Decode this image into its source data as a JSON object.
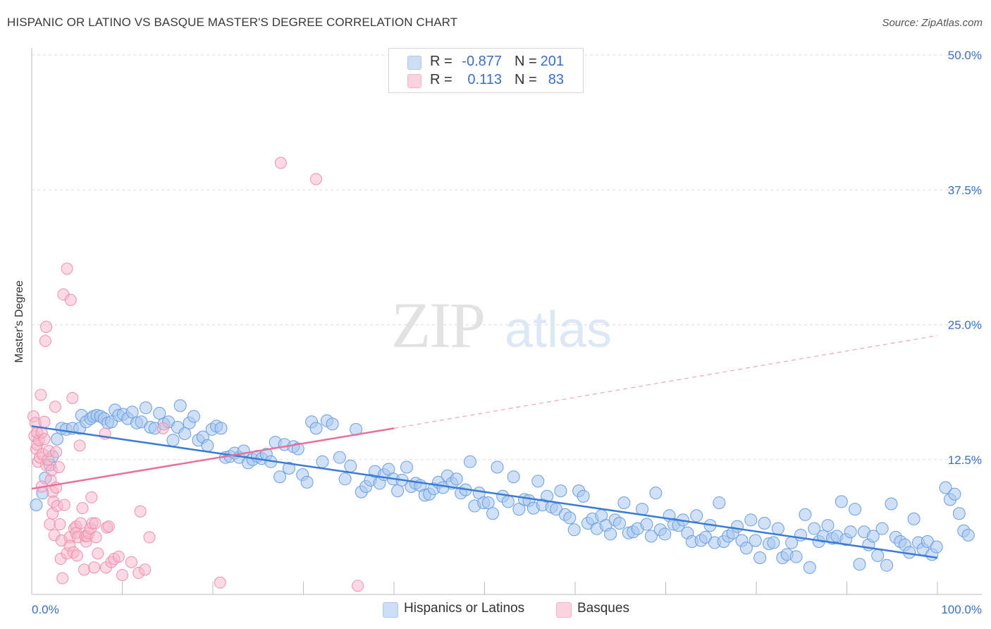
{
  "title": "HISPANIC OR LATINO VS BASQUE MASTER'S DEGREE CORRELATION CHART",
  "source": "Source: ZipAtlas.com",
  "watermark": {
    "zip": "ZIP",
    "atlas": "atlas"
  },
  "legend_top": [
    {
      "swatch_color": "#aac8f0",
      "r_label": "R =",
      "r_value": "-0.877",
      "n_label": "N =",
      "n_value": "201"
    },
    {
      "swatch_color": "#f7b6c8",
      "r_label": "R =",
      "r_value": "0.113",
      "n_label": "N =",
      "n_value": "83"
    }
  ],
  "legend_bottom": [
    {
      "label": "Hispanics or Latinos",
      "swatch_color": "#aac8f0"
    },
    {
      "label": "Basques",
      "swatch_color": "#f7b6c8"
    }
  ],
  "colors": {
    "blue": "#3a7bd5",
    "blue_fill": "#aac8f0",
    "pink": "#e8709a",
    "pink_fill": "#f7b6c8",
    "tick_text": "#3a6fc4"
  },
  "chart_data": {
    "type": "scatter",
    "title": "HISPANIC OR LATINO VS BASQUE MASTER'S DEGREE CORRELATION CHART",
    "xlabel": "",
    "ylabel": "Master's Degree",
    "xlim": [
      0,
      100
    ],
    "ylim": [
      0,
      50
    ],
    "x_tick_labels": [
      "0.0%",
      "100.0%"
    ],
    "y_ticks": [
      12.5,
      25.0,
      37.5,
      50.0
    ],
    "y_tick_labels": [
      "12.5%",
      "25.0%",
      "37.5%",
      "50.0%"
    ],
    "grid": "horizontal dashed",
    "series": [
      {
        "name": "Hispanics or Latinos",
        "color": "#3a7bd5",
        "R": -0.877,
        "N": 201,
        "trend": {
          "x": [
            0,
            100
          ],
          "y": [
            15.6,
            3.4
          ]
        },
        "points": [
          [
            0.5,
            8.3
          ],
          [
            1.2,
            9.4
          ],
          [
            1.5,
            10.8
          ],
          [
            2.0,
            12.0
          ],
          [
            2.3,
            12.8
          ],
          [
            2.8,
            14.4
          ],
          [
            3.3,
            15.4
          ],
          [
            3.8,
            15.3
          ],
          [
            4.5,
            15.4
          ],
          [
            5.3,
            15.4
          ],
          [
            5.5,
            16.6
          ],
          [
            6.0,
            16.0
          ],
          [
            6.5,
            16.3
          ],
          [
            6.8,
            16.5
          ],
          [
            7.2,
            16.6
          ],
          [
            7.6,
            16.5
          ],
          [
            8.0,
            16.3
          ],
          [
            8.4,
            15.9
          ],
          [
            8.8,
            16.0
          ],
          [
            9.2,
            17.1
          ],
          [
            9.6,
            16.6
          ],
          [
            10.1,
            16.7
          ],
          [
            10.6,
            16.3
          ],
          [
            11.1,
            16.9
          ],
          [
            11.6,
            15.9
          ],
          [
            12.1,
            16.0
          ],
          [
            12.6,
            17.3
          ],
          [
            13.1,
            15.5
          ],
          [
            13.6,
            15.4
          ],
          [
            14.1,
            16.8
          ],
          [
            14.6,
            15.8
          ],
          [
            15.1,
            16.0
          ],
          [
            15.6,
            14.3
          ],
          [
            16.1,
            15.5
          ],
          [
            16.4,
            17.5
          ],
          [
            16.9,
            14.9
          ],
          [
            17.4,
            15.9
          ],
          [
            17.9,
            16.5
          ],
          [
            18.4,
            14.3
          ],
          [
            18.9,
            14.6
          ],
          [
            19.4,
            13.8
          ],
          [
            19.9,
            15.3
          ],
          [
            20.4,
            15.6
          ],
          [
            20.9,
            15.4
          ],
          [
            21.4,
            12.7
          ],
          [
            21.9,
            12.8
          ],
          [
            22.4,
            13.1
          ],
          [
            22.9,
            12.7
          ],
          [
            23.4,
            13.3
          ],
          [
            23.9,
            12.2
          ],
          [
            24.4,
            12.5
          ],
          [
            24.9,
            12.8
          ],
          [
            25.4,
            12.6
          ],
          [
            25.9,
            13.0
          ],
          [
            26.4,
            12.3
          ],
          [
            26.9,
            14.1
          ],
          [
            27.4,
            10.9
          ],
          [
            27.9,
            13.9
          ],
          [
            28.4,
            11.7
          ],
          [
            28.9,
            13.7
          ],
          [
            29.4,
            13.5
          ],
          [
            29.9,
            11.1
          ],
          [
            30.4,
            10.4
          ],
          [
            30.9,
            16.0
          ],
          [
            31.4,
            15.4
          ],
          [
            32.1,
            12.3
          ],
          [
            32.6,
            16.1
          ],
          [
            33.2,
            15.8
          ],
          [
            34.0,
            12.7
          ],
          [
            34.6,
            10.7
          ],
          [
            35.2,
            11.9
          ],
          [
            35.8,
            15.3
          ],
          [
            36.4,
            9.5
          ],
          [
            36.9,
            10.0
          ],
          [
            37.4,
            10.6
          ],
          [
            37.9,
            11.4
          ],
          [
            38.4,
            10.3
          ],
          [
            38.9,
            11.1
          ],
          [
            39.4,
            11.6
          ],
          [
            39.9,
            10.7
          ],
          [
            40.4,
            9.6
          ],
          [
            40.9,
            10.6
          ],
          [
            41.4,
            11.8
          ],
          [
            41.9,
            10.0
          ],
          [
            42.4,
            10.3
          ],
          [
            42.9,
            10.1
          ],
          [
            43.4,
            9.2
          ],
          [
            43.9,
            9.3
          ],
          [
            44.4,
            9.8
          ],
          [
            44.9,
            10.4
          ],
          [
            45.4,
            9.9
          ],
          [
            45.9,
            11.0
          ],
          [
            46.4,
            10.3
          ],
          [
            46.9,
            10.7
          ],
          [
            47.4,
            9.4
          ],
          [
            47.9,
            9.7
          ],
          [
            48.4,
            12.3
          ],
          [
            48.9,
            8.2
          ],
          [
            49.4,
            9.4
          ],
          [
            49.9,
            8.5
          ],
          [
            50.4,
            8.5
          ],
          [
            50.9,
            7.5
          ],
          [
            51.4,
            11.8
          ],
          [
            52.0,
            9.1
          ],
          [
            52.6,
            8.6
          ],
          [
            53.2,
            10.9
          ],
          [
            53.8,
            7.9
          ],
          [
            54.4,
            8.8
          ],
          [
            54.9,
            8.7
          ],
          [
            55.4,
            8.0
          ],
          [
            55.9,
            10.5
          ],
          [
            56.4,
            8.3
          ],
          [
            56.9,
            9.1
          ],
          [
            57.4,
            8.1
          ],
          [
            57.9,
            7.9
          ],
          [
            58.4,
            9.6
          ],
          [
            58.9,
            7.4
          ],
          [
            59.4,
            7.1
          ],
          [
            59.9,
            6.0
          ],
          [
            60.4,
            9.6
          ],
          [
            60.9,
            9.1
          ],
          [
            61.4,
            6.6
          ],
          [
            61.9,
            7.0
          ],
          [
            62.4,
            6.1
          ],
          [
            62.9,
            7.3
          ],
          [
            63.4,
            6.4
          ],
          [
            63.9,
            5.6
          ],
          [
            64.4,
            6.9
          ],
          [
            64.9,
            6.6
          ],
          [
            65.4,
            8.5
          ],
          [
            65.9,
            5.7
          ],
          [
            66.4,
            5.8
          ],
          [
            66.9,
            6.1
          ],
          [
            67.4,
            7.9
          ],
          [
            67.9,
            6.5
          ],
          [
            68.4,
            5.4
          ],
          [
            68.9,
            9.4
          ],
          [
            69.4,
            6.0
          ],
          [
            69.9,
            5.6
          ],
          [
            70.4,
            7.3
          ],
          [
            70.9,
            6.5
          ],
          [
            71.4,
            6.4
          ],
          [
            71.9,
            6.9
          ],
          [
            72.4,
            5.7
          ],
          [
            72.9,
            4.9
          ],
          [
            73.4,
            7.3
          ],
          [
            73.9,
            5.0
          ],
          [
            74.4,
            5.3
          ],
          [
            74.9,
            6.4
          ],
          [
            75.4,
            4.8
          ],
          [
            75.9,
            8.5
          ],
          [
            76.4,
            4.9
          ],
          [
            76.9,
            5.4
          ],
          [
            77.4,
            5.7
          ],
          [
            77.9,
            6.3
          ],
          [
            78.4,
            5.0
          ],
          [
            78.9,
            4.3
          ],
          [
            79.4,
            6.9
          ],
          [
            79.9,
            5.0
          ],
          [
            80.4,
            3.4
          ],
          [
            80.9,
            6.6
          ],
          [
            81.4,
            4.7
          ],
          [
            81.9,
            4.8
          ],
          [
            82.4,
            6.1
          ],
          [
            82.9,
            3.4
          ],
          [
            83.4,
            3.7
          ],
          [
            83.9,
            4.8
          ],
          [
            84.4,
            3.5
          ],
          [
            84.9,
            5.5
          ],
          [
            85.4,
            7.4
          ],
          [
            85.9,
            2.5
          ],
          [
            86.4,
            6.1
          ],
          [
            86.9,
            4.9
          ],
          [
            87.4,
            5.4
          ],
          [
            87.9,
            6.4
          ],
          [
            88.4,
            5.2
          ],
          [
            88.9,
            5.4
          ],
          [
            89.4,
            8.6
          ],
          [
            89.9,
            5.1
          ],
          [
            90.4,
            5.8
          ],
          [
            90.9,
            7.9
          ],
          [
            91.4,
            2.8
          ],
          [
            91.9,
            5.8
          ],
          [
            92.4,
            4.6
          ],
          [
            92.9,
            5.4
          ],
          [
            93.4,
            3.6
          ],
          [
            93.9,
            6.1
          ],
          [
            94.4,
            2.7
          ],
          [
            94.9,
            8.4
          ],
          [
            95.4,
            5.3
          ],
          [
            95.9,
            4.9
          ],
          [
            96.4,
            4.6
          ],
          [
            96.9,
            3.9
          ],
          [
            97.4,
            7.0
          ],
          [
            97.9,
            4.8
          ],
          [
            98.4,
            4.2
          ],
          [
            98.9,
            4.9
          ],
          [
            99.4,
            3.7
          ],
          [
            99.9,
            4.4
          ],
          [
            100.9,
            9.9
          ],
          [
            101.4,
            8.8
          ],
          [
            101.9,
            9.3
          ],
          [
            102.4,
            7.5
          ],
          [
            102.9,
            5.9
          ],
          [
            103.4,
            5.5
          ]
        ]
      },
      {
        "name": "Basques",
        "color": "#e8709a",
        "R": 0.113,
        "N": 83,
        "trend": {
          "x": [
            0,
            40
          ],
          "y": [
            9.8,
            15.4
          ]
        },
        "trend_extrapolated": {
          "x": [
            40,
            100
          ],
          "y": [
            15.4,
            24.0
          ]
        },
        "points": [
          [
            0.2,
            16.5
          ],
          [
            0.3,
            14.7
          ],
          [
            0.4,
            15.9
          ],
          [
            0.5,
            13.5
          ],
          [
            0.6,
            13.9
          ],
          [
            0.6,
            15.0
          ],
          [
            0.7,
            12.3
          ],
          [
            0.8,
            14.3
          ],
          [
            0.9,
            12.7
          ],
          [
            1.0,
            18.5
          ],
          [
            1.1,
            15.0
          ],
          [
            1.1,
            10.0
          ],
          [
            1.2,
            13.0
          ],
          [
            1.4,
            14.4
          ],
          [
            1.4,
            16.0
          ],
          [
            1.5,
            23.5
          ],
          [
            1.6,
            24.8
          ],
          [
            1.6,
            12.0
          ],
          [
            1.8,
            12.5
          ],
          [
            1.9,
            13.3
          ],
          [
            2.0,
            6.5
          ],
          [
            2.1,
            10.6
          ],
          [
            2.2,
            11.5
          ],
          [
            2.3,
            9.5
          ],
          [
            2.3,
            7.5
          ],
          [
            2.4,
            8.6
          ],
          [
            2.5,
            5.5
          ],
          [
            2.6,
            17.4
          ],
          [
            2.7,
            13.2
          ],
          [
            2.7,
            9.9
          ],
          [
            2.8,
            8.2
          ],
          [
            3.0,
            11.8
          ],
          [
            3.1,
            6.5
          ],
          [
            3.2,
            3.3
          ],
          [
            3.3,
            5.0
          ],
          [
            3.4,
            1.5
          ],
          [
            3.5,
            27.8
          ],
          [
            3.6,
            8.3
          ],
          [
            3.9,
            30.2
          ],
          [
            3.9,
            3.8
          ],
          [
            4.2,
            5.3
          ],
          [
            4.2,
            4.5
          ],
          [
            4.3,
            27.3
          ],
          [
            4.5,
            18.2
          ],
          [
            4.6,
            3.9
          ],
          [
            4.7,
            6.1
          ],
          [
            4.9,
            6.3
          ],
          [
            4.9,
            5.7
          ],
          [
            5.0,
            3.6
          ],
          [
            5.1,
            5.3
          ],
          [
            5.3,
            13.8
          ],
          [
            5.4,
            6.6
          ],
          [
            5.6,
            8.0
          ],
          [
            5.8,
            2.3
          ],
          [
            5.9,
            5.4
          ],
          [
            6.0,
            4.9
          ],
          [
            6.1,
            5.4
          ],
          [
            6.3,
            5.7
          ],
          [
            6.5,
            6.1
          ],
          [
            6.6,
            9.0
          ],
          [
            6.7,
            6.6
          ],
          [
            6.9,
            2.5
          ],
          [
            7.0,
            6.6
          ],
          [
            7.1,
            5.3
          ],
          [
            7.3,
            3.8
          ],
          [
            8.1,
            14.9
          ],
          [
            8.2,
            2.5
          ],
          [
            8.3,
            6.2
          ],
          [
            8.5,
            6.3
          ],
          [
            8.8,
            3.0
          ],
          [
            9.1,
            3.3
          ],
          [
            9.6,
            3.5
          ],
          [
            10.0,
            1.8
          ],
          [
            11.0,
            3.0
          ],
          [
            11.8,
            2.0
          ],
          [
            12.0,
            7.7
          ],
          [
            12.5,
            2.3
          ],
          [
            13.0,
            5.3
          ],
          [
            14.5,
            15.4
          ],
          [
            20.8,
            1.1
          ],
          [
            27.5,
            40.0
          ],
          [
            31.4,
            38.5
          ],
          [
            36.0,
            0.8
          ]
        ]
      }
    ]
  }
}
